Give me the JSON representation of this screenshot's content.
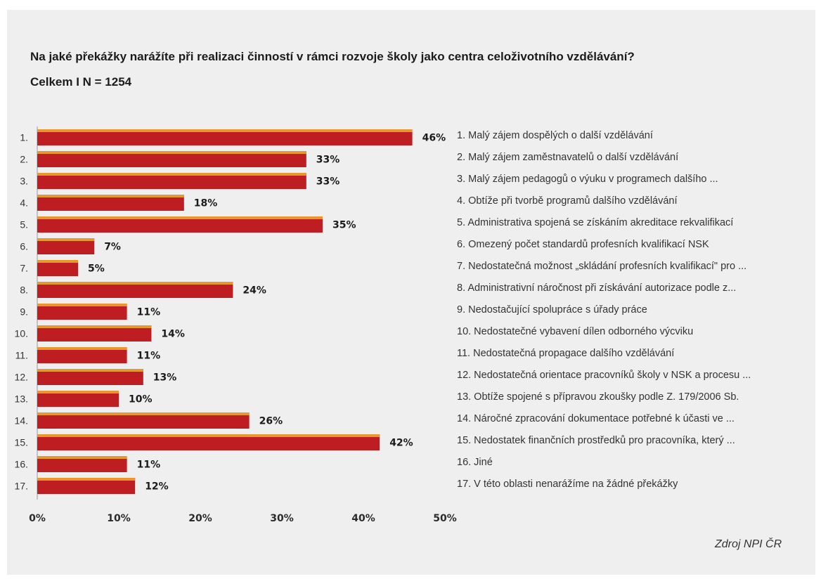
{
  "colors": {
    "bar_fill": "#be1e22",
    "bar_highlight": "#e8962e",
    "panel_background": "#efefef"
  },
  "chart_data": {
    "type": "bar",
    "orientation": "horizontal",
    "title": "Na jaké překážky narážíte při realizaci činností v rámci rozvoje školy jako centra celoživotního vzdělávání?",
    "subtitle": "Celkem  I  N = 1254",
    "categories": [
      "1.",
      "2.",
      "3.",
      "4.",
      "5.",
      "6.",
      "7.",
      "8.",
      "9.",
      "10.",
      "11.",
      "12.",
      "13.",
      "14.",
      "15.",
      "16.",
      "17."
    ],
    "values": [
      46,
      33,
      33,
      18,
      35,
      7,
      5,
      24,
      11,
      14,
      11,
      13,
      10,
      26,
      42,
      11,
      12
    ],
    "data_labels": [
      "46%",
      "33%",
      "33%",
      "18%",
      "35%",
      "7%",
      "5%",
      "24%",
      "11%",
      "14%",
      "11%",
      "13%",
      "10%",
      "26%",
      "42%",
      "11%",
      "12%"
    ],
    "xlim": [
      0,
      50
    ],
    "x_ticks": [
      "0%",
      "10%",
      "20%",
      "30%",
      "40%",
      "50%"
    ],
    "grid": false,
    "legend_position": "right",
    "legend": [
      "1. Malý zájem dospělých o další vzdělávání",
      "2. Malý zájem zaměstnavatelů o další vzdělávání",
      "3. Malý zájem pedagogů o výuku v programech dalšího ...",
      "4. Obtíže při tvorbě programů dalšího vzdělávání",
      "5. Administrativa spojená se získáním akreditace rekvalifikací",
      "6. Omezený počet standardů profesních kvalifikací NSK",
      "7. Nedostatečná možnost „skládání profesních kvalifikací\" pro ...",
      "8. Administrativní náročnost při získávání autorizace podle z...",
      "9. Nedostačující spolupráce s úřady práce",
      "10. Nedostatečné vybavení dílen odborného výcviku",
      "11. Nedostatečná propagace dalšího vzdělávání",
      "12. Nedostatečná orientace pracovníků školy v NSK a procesu ...",
      "13. Obtíže spojené s přípravou zkoušky podle Z. 179/2006 Sb.",
      "14. Náročné zpracování dokumentace potřebné k účasti ve ...",
      "15. Nedostatek finančních prostředků pro pracovníka, který ...",
      "16. Jiné",
      "17. V této oblasti nenarážíme na žádné překážky"
    ]
  },
  "source": "Zdroj NPI ČR"
}
